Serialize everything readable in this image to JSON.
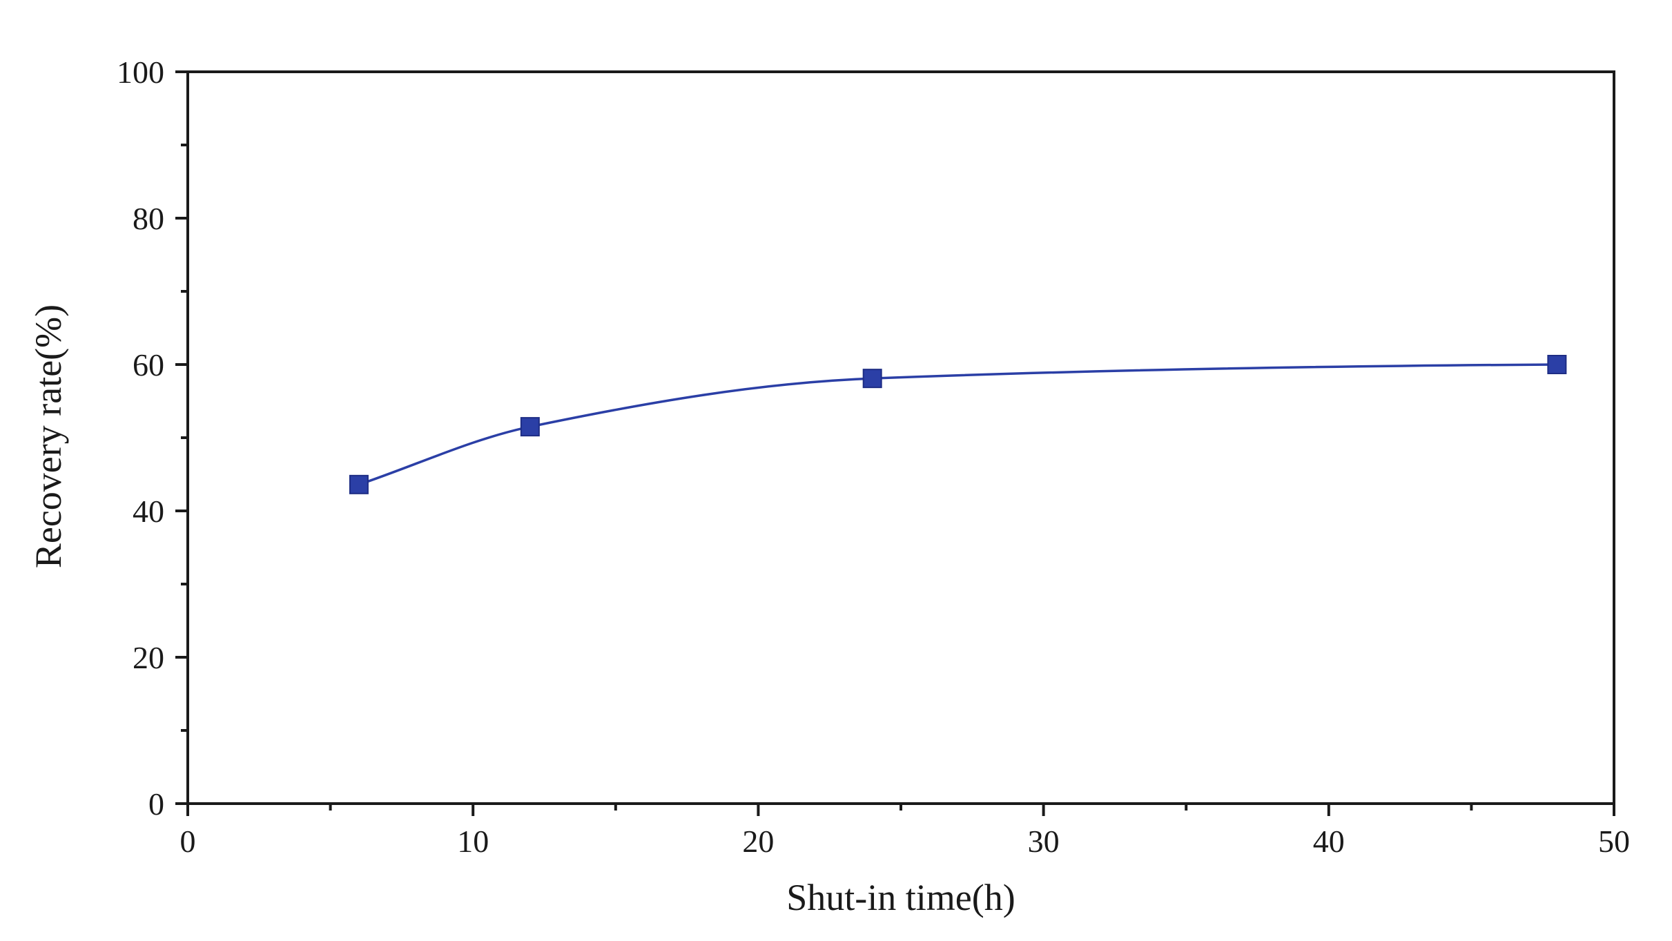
{
  "chart_data": {
    "type": "line",
    "title": "",
    "xlabel": "Shut-in time(h)",
    "ylabel": "Recovery rate(%)",
    "xlim": [
      0,
      50
    ],
    "ylim": [
      0,
      100
    ],
    "x_ticks": [
      0,
      10,
      20,
      30,
      40,
      50
    ],
    "y_ticks": [
      0,
      20,
      40,
      60,
      80,
      100
    ],
    "x_minor_step": 5,
    "y_minor_step": 10,
    "grid": false,
    "legend": "none",
    "series": [
      {
        "marker": "square",
        "line": "smooth",
        "color": "#2b3fa6",
        "x": [
          6,
          12,
          24,
          48
        ],
        "y": [
          43.6,
          51.5,
          58.1,
          60.0
        ]
      }
    ]
  }
}
